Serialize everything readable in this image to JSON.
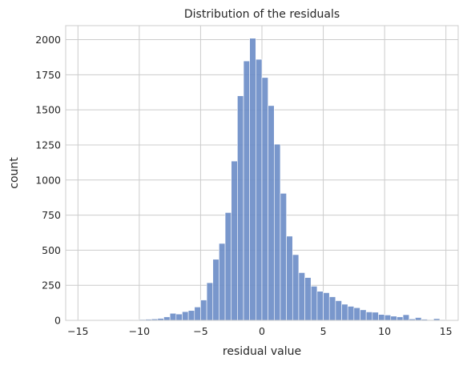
{
  "chart_data": {
    "type": "bar",
    "title": "Distribution of the residuals",
    "xlabel": "residual value",
    "ylabel": "count",
    "xlim": [
      -16.0,
      16.0
    ],
    "ylim": [
      0,
      2100
    ],
    "xticks": [
      -15,
      -10,
      -5,
      0,
      5,
      10,
      15
    ],
    "yticks": [
      0,
      250,
      500,
      750,
      1000,
      1250,
      1500,
      1750,
      2000
    ],
    "grid": true,
    "bar_color": "#6a8cc7",
    "bin_width": 0.5,
    "bins": [
      {
        "x0": -15.0,
        "count": 2
      },
      {
        "x0": -14.5,
        "count": 1
      },
      {
        "x0": -14.0,
        "count": 1
      },
      {
        "x0": -13.5,
        "count": 1
      },
      {
        "x0": -13.0,
        "count": 1
      },
      {
        "x0": -12.5,
        "count": 2
      },
      {
        "x0": -12.0,
        "count": 1
      },
      {
        "x0": -11.5,
        "count": 2
      },
      {
        "x0": -11.0,
        "count": 3
      },
      {
        "x0": -10.5,
        "count": 4
      },
      {
        "x0": -10.0,
        "count": 6
      },
      {
        "x0": -9.5,
        "count": 8
      },
      {
        "x0": -9.0,
        "count": 10
      },
      {
        "x0": -8.5,
        "count": 14
      },
      {
        "x0": -8.0,
        "count": 25
      },
      {
        "x0": -7.5,
        "count": 50
      },
      {
        "x0": -7.0,
        "count": 45
      },
      {
        "x0": -6.5,
        "count": 62
      },
      {
        "x0": -6.0,
        "count": 70
      },
      {
        "x0": -5.5,
        "count": 95
      },
      {
        "x0": -5.0,
        "count": 145
      },
      {
        "x0": -4.5,
        "count": 268
      },
      {
        "x0": -4.0,
        "count": 435
      },
      {
        "x0": -3.5,
        "count": 548
      },
      {
        "x0": -3.0,
        "count": 768
      },
      {
        "x0": -2.5,
        "count": 1135
      },
      {
        "x0": -2.0,
        "count": 1600
      },
      {
        "x0": -1.5,
        "count": 1848
      },
      {
        "x0": -1.0,
        "count": 2010
      },
      {
        "x0": -0.5,
        "count": 1860
      },
      {
        "x0": 0.0,
        "count": 1730
      },
      {
        "x0": 0.5,
        "count": 1530
      },
      {
        "x0": 1.0,
        "count": 1255
      },
      {
        "x0": 1.5,
        "count": 905
      },
      {
        "x0": 2.0,
        "count": 600
      },
      {
        "x0": 2.5,
        "count": 468
      },
      {
        "x0": 3.0,
        "count": 340
      },
      {
        "x0": 3.5,
        "count": 305
      },
      {
        "x0": 4.0,
        "count": 243
      },
      {
        "x0": 4.5,
        "count": 207
      },
      {
        "x0": 5.0,
        "count": 197
      },
      {
        "x0": 5.5,
        "count": 168
      },
      {
        "x0": 6.0,
        "count": 140
      },
      {
        "x0": 6.5,
        "count": 115
      },
      {
        "x0": 7.0,
        "count": 100
      },
      {
        "x0": 7.5,
        "count": 90
      },
      {
        "x0": 8.0,
        "count": 75
      },
      {
        "x0": 8.5,
        "count": 60
      },
      {
        "x0": 9.0,
        "count": 58
      },
      {
        "x0": 9.5,
        "count": 42
      },
      {
        "x0": 10.0,
        "count": 38
      },
      {
        "x0": 10.5,
        "count": 30
      },
      {
        "x0": 11.0,
        "count": 25
      },
      {
        "x0": 11.5,
        "count": 40
      },
      {
        "x0": 12.0,
        "count": 10
      },
      {
        "x0": 12.5,
        "count": 20
      },
      {
        "x0": 13.0,
        "count": 8
      },
      {
        "x0": 13.5,
        "count": 5
      },
      {
        "x0": 14.0,
        "count": 12
      },
      {
        "x0": 14.5,
        "count": 5
      }
    ]
  }
}
